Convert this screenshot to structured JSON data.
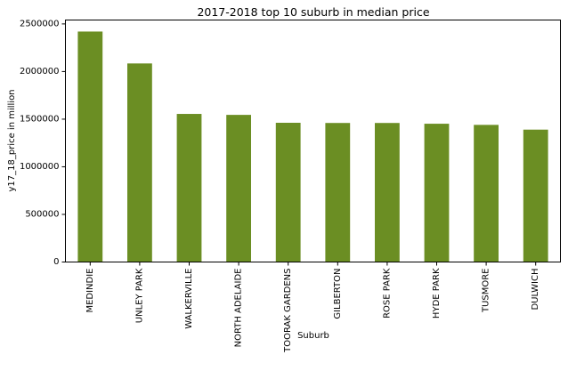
{
  "chart_data": {
    "type": "bar",
    "title": "2017-2018 top 10 suburb in median price",
    "xlabel": "Suburb",
    "ylabel": "y17_18_price in million",
    "categories": [
      "MEDINDIE",
      "UNLEY PARK",
      "WALKERVILLE",
      "NORTH ADELAIDE",
      "TOORAK GARDENS",
      "GILBERTON",
      "ROSE PARK",
      "HYDE PARK",
      "TUSMORE",
      "DULWICH"
    ],
    "values": [
      2420000,
      2085000,
      1555000,
      1545000,
      1462000,
      1460000,
      1460000,
      1452000,
      1440000,
      1390000
    ],
    "ylim": [
      0,
      2541000
    ],
    "yticks": [
      0,
      500000,
      1000000,
      1500000,
      2000000,
      2500000
    ],
    "ytick_labels": [
      "0",
      "500000",
      "1000000",
      "1500000",
      "2000000",
      "2500000"
    ],
    "grid": false,
    "legend": "none",
    "bar_color": "#6b8e23"
  }
}
